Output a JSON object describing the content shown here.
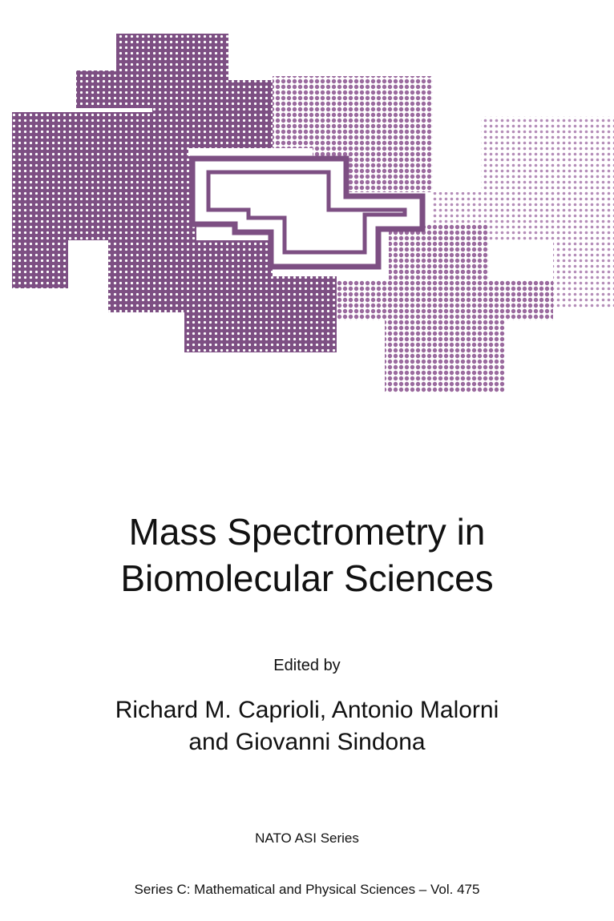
{
  "cover": {
    "title": [
      "Mass Spectrometry in",
      "Biomolecular Sciences"
    ],
    "edited_by": "Edited by",
    "editors": [
      "Richard M. Caprioli, Antonio Malorni",
      "and Giovanni Sindona"
    ],
    "series": "NATO ASI Series",
    "subseries": "Series C: Mathematical and Physical Sciences – Vol. 475"
  }
}
